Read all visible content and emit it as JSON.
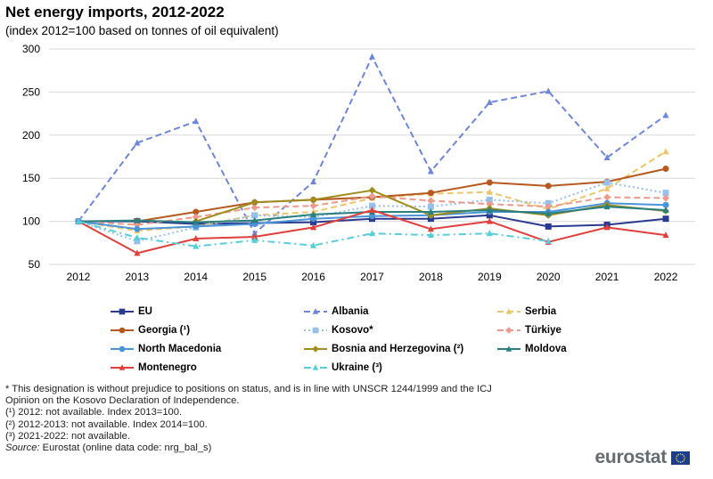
{
  "title": "Net energy imports, 2012-2022",
  "subtitle": "(index 2012=100 based on tonnes of oil equivalent)",
  "chart_data": {
    "type": "line",
    "x": [
      "2012",
      "2013",
      "2014",
      "2015",
      "2016",
      "2017",
      "2018",
      "2019",
      "2020",
      "2021",
      "2022"
    ],
    "ylim": [
      50,
      300
    ],
    "yticks": [
      50,
      100,
      150,
      200,
      250,
      300
    ],
    "grid": "horizontal",
    "legend_position": "bottom",
    "series": [
      {
        "name": "EU",
        "color": "#2a3b8f",
        "dash": "solid",
        "marker": "square",
        "values": [
          100,
          100,
          97,
          98,
          99,
          103,
          103,
          107,
          94,
          96,
          103
        ]
      },
      {
        "name": "Albania",
        "color": "#6f86d6",
        "dash": "dashed",
        "marker": "triangle",
        "values": [
          100,
          191,
          216,
          86,
          146,
          291,
          158,
          238,
          251,
          174,
          223
        ]
      },
      {
        "name": "Serbia",
        "color": "#ecc66b",
        "dash": "dashed",
        "marker": "triangle",
        "values": [
          100,
          89,
          94,
          107,
          111,
          127,
          132,
          134,
          114,
          138,
          181
        ]
      },
      {
        "name": "Georgia (¹)",
        "color": "#b5591e",
        "dash": "solid",
        "marker": "circle",
        "values": [
          null,
          100,
          111,
          122,
          125,
          128,
          133,
          145,
          141,
          146,
          161
        ]
      },
      {
        "name": "Kosovo*",
        "color": "#96c0ea",
        "dash": "dotted",
        "marker": "square",
        "values": [
          100,
          77,
          93,
          107,
          105,
          118,
          117,
          125,
          121,
          145,
          133
        ]
      },
      {
        "name": "Türkiye",
        "color": "#ec9a8c",
        "dash": "dashed",
        "marker": "diamond",
        "values": [
          100,
          96,
          105,
          116,
          118,
          129,
          124,
          120,
          117,
          128,
          127
        ]
      },
      {
        "name": "North Macedonia",
        "color": "#4a94d8",
        "dash": "solid",
        "marker": "circle",
        "values": [
          100,
          91,
          94,
          97,
          103,
          106,
          107,
          111,
          111,
          121,
          119
        ]
      },
      {
        "name": "Bosnia and Herzegovina (²)",
        "color": "#a08c1e",
        "dash": "solid",
        "marker": "diamond",
        "values": [
          null,
          null,
          100,
          122,
          125,
          136,
          107,
          115,
          107,
          119,
          112
        ]
      },
      {
        "name": "Moldova",
        "color": "#2a7f7f",
        "dash": "solid",
        "marker": "triangle",
        "values": [
          100,
          101,
          99,
          101,
          108,
          111,
          111,
          113,
          109,
          117,
          113
        ]
      },
      {
        "name": "Montenegro",
        "color": "#e0403c",
        "dash": "solid",
        "marker": "triangle",
        "values": [
          100,
          63,
          80,
          82,
          93,
          113,
          91,
          100,
          76,
          93,
          84
        ]
      },
      {
        "name": "Ukraine (³)",
        "color": "#58cdd8",
        "dash": "dashdot",
        "marker": "triangle",
        "values": [
          100,
          81,
          71,
          78,
          72,
          86,
          84,
          86,
          77,
          null,
          null
        ]
      }
    ]
  },
  "notes": [
    "* This designation is without prejudice to positions on status, and is in line with UNSCR 1244/1999 and the ICJ",
    "Opinion on the Kosovo Declaration of Independence.",
    "(¹) 2012: not available. Index 2013=100.",
    "(²) 2012-2013: not available. Index 2014=100.",
    "(³) 2021-2022: not available."
  ],
  "source": {
    "label": "Source:",
    "text": " Eurostat (online data code: nrg_bal_s)"
  },
  "logo": {
    "text": "eurostat",
    "flag_color": "#1e3c8c",
    "star_color": "#ffd400"
  }
}
